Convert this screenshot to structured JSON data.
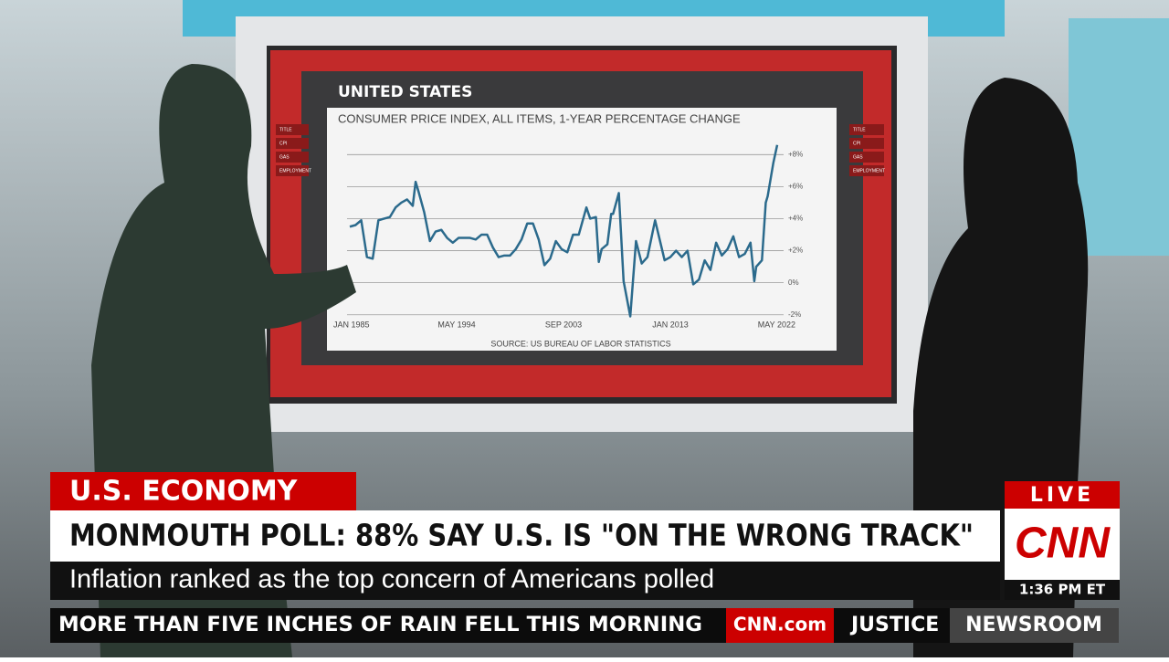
{
  "screen": {
    "country": "UNITED STATES",
    "tabs_left": [
      "TITLE",
      "CPI",
      "GAS",
      "EMPLOYMENT"
    ],
    "tabs_right": [
      "TITLE",
      "CPI",
      "GAS",
      "EMPLOYMENT"
    ]
  },
  "chart_data": {
    "type": "line",
    "title": "CONSUMER PRICE INDEX, ALL ITEMS, 1-YEAR PERCENTAGE CHANGE",
    "source": "SOURCE: US BUREAU OF LABOR STATISTICS",
    "x": [
      "1985-01",
      "1985-07",
      "1986-01",
      "1986-07",
      "1987-01",
      "1987-07",
      "1988-01",
      "1988-07",
      "1989-01",
      "1989-07",
      "1990-01",
      "1990-07",
      "1990-10",
      "1991-01",
      "1991-07",
      "1992-01",
      "1992-07",
      "1993-01",
      "1993-07",
      "1994-01",
      "1994-07",
      "1995-01",
      "1995-07",
      "1996-01",
      "1996-07",
      "1997-01",
      "1997-07",
      "1998-01",
      "1998-07",
      "1999-01",
      "1999-07",
      "2000-01",
      "2000-07",
      "2001-01",
      "2001-07",
      "2002-01",
      "2002-07",
      "2003-01",
      "2003-07",
      "2004-01",
      "2004-07",
      "2005-01",
      "2005-09",
      "2006-01",
      "2006-07",
      "2006-10",
      "2007-01",
      "2007-07",
      "2007-11",
      "2008-01",
      "2008-07",
      "2008-12",
      "2009-07",
      "2010-01",
      "2010-07",
      "2011-01",
      "2011-09",
      "2012-01",
      "2012-07",
      "2013-01",
      "2013-07",
      "2014-01",
      "2014-07",
      "2015-01",
      "2015-07",
      "2016-01",
      "2016-07",
      "2017-01",
      "2017-07",
      "2018-01",
      "2018-07",
      "2019-01",
      "2019-07",
      "2020-01",
      "2020-05",
      "2020-07",
      "2021-01",
      "2021-05",
      "2021-07",
      "2022-01",
      "2022-05"
    ],
    "values": [
      3.5,
      3.6,
      3.9,
      1.6,
      1.5,
      3.9,
      4.0,
      4.1,
      4.7,
      5.0,
      5.2,
      4.8,
      6.3,
      5.7,
      4.4,
      2.6,
      3.2,
      3.3,
      2.8,
      2.5,
      2.8,
      2.8,
      2.8,
      2.7,
      3.0,
      3.0,
      2.2,
      1.6,
      1.7,
      1.7,
      2.1,
      2.7,
      3.7,
      3.7,
      2.7,
      1.1,
      1.5,
      2.6,
      2.1,
      1.9,
      3.0,
      3.0,
      4.7,
      4.0,
      4.1,
      1.3,
      2.1,
      2.4,
      4.3,
      4.3,
      5.6,
      0.1,
      -2.1,
      2.6,
      1.2,
      1.6,
      3.9,
      2.9,
      1.4,
      1.6,
      2.0,
      1.6,
      2.0,
      -0.1,
      0.2,
      1.4,
      0.8,
      2.5,
      1.7,
      2.1,
      2.9,
      1.6,
      1.8,
      2.5,
      0.1,
      1.0,
      1.4,
      5.0,
      5.4,
      7.5,
      8.6
    ],
    "color": "#2b6a8c",
    "xlim": [
      "1985-01",
      "2022-05"
    ],
    "xticks": [
      {
        "value": "1985-01",
        "label": "JAN 1985"
      },
      {
        "value": "1994-05",
        "label": "MAY 1994"
      },
      {
        "value": "2003-09",
        "label": "SEP 2003"
      },
      {
        "value": "2013-01",
        "label": "JAN 2013"
      },
      {
        "value": "2022-05",
        "label": "MAY 2022"
      }
    ],
    "ylim": [
      -2.3,
      9.5
    ],
    "yticks": [
      {
        "value": 8,
        "label": "+8%"
      },
      {
        "value": 6,
        "label": "+6%"
      },
      {
        "value": 4,
        "label": "+4%"
      },
      {
        "value": 2,
        "label": "+2%"
      },
      {
        "value": 0,
        "label": "0%"
      },
      {
        "value": -2,
        "label": "-2%"
      }
    ],
    "grid": true
  },
  "chyron": {
    "topic": "U.S. ECONOMY",
    "headline": "MONMOUTH POLL: 88% SAY U.S. IS \"ON THE WRONG TRACK\"",
    "subline": "Inflation ranked as the top concern of Americans polled",
    "live": "LIVE",
    "logo": "CNN",
    "time": "1:36 PM ET"
  },
  "ticker": {
    "text": "MORE THAN FIVE INCHES OF RAIN FELL THIS MORNING",
    "site": "CNN.com",
    "next": "JUSTICE",
    "show": "NEWSROOM"
  }
}
